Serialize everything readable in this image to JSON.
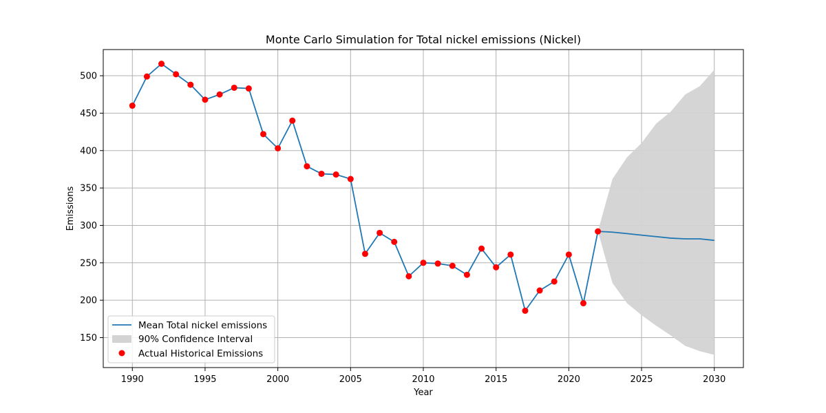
{
  "chart_data": {
    "type": "line",
    "title": "Monte Carlo Simulation for Total nickel emissions (Nickel)",
    "xlabel": "Year",
    "ylabel": "Emissions",
    "xlim": [
      1988,
      2032
    ],
    "ylim": [
      110,
      535
    ],
    "xticks": [
      1990,
      1995,
      2000,
      2005,
      2010,
      2015,
      2020,
      2025,
      2030
    ],
    "yticks": [
      150,
      200,
      250,
      300,
      350,
      400,
      450,
      500
    ],
    "grid": true,
    "legend_position": "lower-left",
    "colors": {
      "mean_line": "#1f77b4",
      "scatter": "#ff0000",
      "band": "#d3d3d3",
      "grid": "#b0b0b0"
    },
    "legend": {
      "mean": "Mean Total nickel emissions",
      "band": "90% Confidence Interval",
      "scatter": "Actual Historical Emissions"
    },
    "mean_series": {
      "name": "Mean Total nickel emissions",
      "x": [
        1990,
        1991,
        1992,
        1993,
        1994,
        1995,
        1996,
        1997,
        1998,
        1999,
        2000,
        2001,
        2002,
        2003,
        2004,
        2005,
        2006,
        2007,
        2008,
        2009,
        2010,
        2011,
        2012,
        2013,
        2014,
        2015,
        2016,
        2017,
        2018,
        2019,
        2020,
        2021,
        2022,
        2023,
        2024,
        2025,
        2026,
        2027,
        2028,
        2029,
        2030
      ],
      "y": [
        460,
        499,
        516,
        502,
        488,
        468,
        475,
        484,
        483,
        422,
        403,
        440,
        379,
        369,
        368,
        362,
        262,
        290,
        278,
        232,
        250,
        249,
        246,
        234,
        269,
        244,
        261,
        186,
        213,
        225,
        261,
        196,
        292,
        291,
        289,
        287,
        285,
        283,
        282,
        282,
        280
      ]
    },
    "confidence_band": {
      "name": "90% Confidence Interval",
      "x": [
        2022,
        2023,
        2024,
        2025,
        2026,
        2027,
        2028,
        2029,
        2030
      ],
      "lower": [
        292,
        223,
        196,
        180,
        166,
        153,
        139,
        132,
        127
      ],
      "upper": [
        292,
        362,
        391,
        410,
        436,
        452,
        475,
        486,
        508
      ]
    },
    "historical": {
      "name": "Actual Historical Emissions",
      "x": [
        1990,
        1991,
        1992,
        1993,
        1994,
        1995,
        1996,
        1997,
        1998,
        1999,
        2000,
        2001,
        2002,
        2003,
        2004,
        2005,
        2006,
        2007,
        2008,
        2009,
        2010,
        2011,
        2012,
        2013,
        2014,
        2015,
        2016,
        2017,
        2018,
        2019,
        2020,
        2021,
        2022
      ],
      "y": [
        460,
        499,
        516,
        502,
        488,
        468,
        475,
        484,
        483,
        422,
        403,
        440,
        379,
        369,
        368,
        362,
        262,
        290,
        278,
        232,
        250,
        249,
        246,
        234,
        269,
        244,
        261,
        186,
        213,
        225,
        261,
        196,
        292
      ]
    }
  }
}
